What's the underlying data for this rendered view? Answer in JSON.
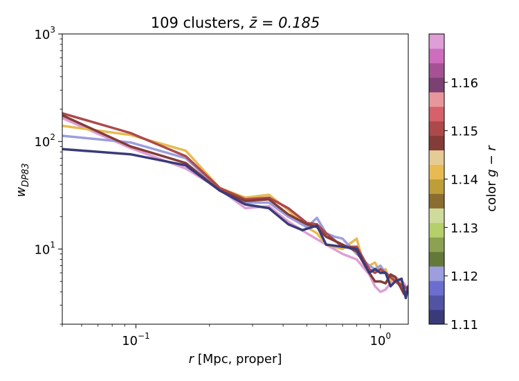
{
  "chart_data": {
    "type": "line",
    "title_main": "109 clusters, ",
    "title_math": "z̄ = 0.185",
    "xlabel_sym": "r",
    "xlabel_rest": " [Mpc, proper]",
    "ylabel_sym": "w",
    "ylabel_sub": "DP83",
    "x_scale": "log",
    "y_scale": "log",
    "xlim": [
      0.05,
      1.3
    ],
    "ylim": [
      2,
      1000
    ],
    "x_ticks": [
      {
        "value": 0.1,
        "label": "10",
        "exp": "−1"
      },
      {
        "value": 1,
        "label": "10",
        "exp": "0"
      }
    ],
    "y_ticks": [
      {
        "value": 10,
        "label": "10",
        "exp": "1"
      },
      {
        "value": 100,
        "label": "10",
        "exp": "2"
      },
      {
        "value": 1000,
        "label": "10",
        "exp": "3"
      }
    ],
    "colorbar": {
      "label_prefix": "color ",
      "label_math": "g − r",
      "range": [
        1.11,
        1.17
      ],
      "ticks": [
        {
          "value": 1.11,
          "label": "1.11"
        },
        {
          "value": 1.12,
          "label": "1.12"
        },
        {
          "value": 1.13,
          "label": "1.13"
        },
        {
          "value": 1.14,
          "label": "1.14"
        },
        {
          "value": 1.15,
          "label": "1.15"
        },
        {
          "value": 1.16,
          "label": "1.16"
        }
      ],
      "colors": [
        "#393b79",
        "#5254a3",
        "#6b6ecf",
        "#9c9ede",
        "#637939",
        "#8ca252",
        "#b5cf6b",
        "#cedb9c",
        "#8c6d31",
        "#bd9e39",
        "#e7ba52",
        "#e7cb94",
        "#843c39",
        "#ad494a",
        "#d6616b",
        "#e7969c",
        "#7b4173",
        "#a55194",
        "#ce6dbd",
        "#de9ed6"
      ]
    },
    "series": [
      {
        "color": "#de9ed6",
        "x": [
          0.05,
          0.095,
          0.16,
          0.22,
          0.28,
          0.35,
          0.42,
          0.5,
          0.6,
          0.7,
          0.8,
          0.9,
          0.95,
          1.0,
          1.05,
          1.15,
          1.25,
          1.3
        ],
        "y": [
          165,
          87,
          56,
          36,
          24,
          25,
          18,
          14,
          11,
          9,
          8,
          5.8,
          4.5,
          4.0,
          4.2,
          5.5,
          4.8,
          4.0
        ]
      },
      {
        "color": "#e7ba52",
        "x": [
          0.05,
          0.095,
          0.16,
          0.22,
          0.28,
          0.35,
          0.42,
          0.5,
          0.55,
          0.6,
          0.7,
          0.8,
          0.85,
          0.9,
          0.95,
          1.0,
          1.05,
          1.1,
          1.15,
          1.25,
          1.3
        ],
        "y": [
          140,
          115,
          82,
          37,
          30,
          32,
          23,
          16,
          14,
          11,
          10,
          12.5,
          7.5,
          7.0,
          7.5,
          6.0,
          6.5,
          5.0,
          5.5,
          4.2,
          4.0
        ]
      },
      {
        "color": "#9c9ede",
        "x": [
          0.05,
          0.095,
          0.16,
          0.22,
          0.28,
          0.35,
          0.42,
          0.5,
          0.55,
          0.6,
          0.65,
          0.7,
          0.8,
          0.9,
          0.95,
          1.0,
          1.05,
          1.1,
          1.15,
          1.25,
          1.3
        ],
        "y": [
          113,
          98,
          70,
          36,
          27,
          27,
          20,
          16,
          19.5,
          14,
          13,
          12.5,
          9,
          7,
          6.5,
          7.0,
          6.0,
          5.5,
          5.0,
          4.2,
          4.5
        ]
      },
      {
        "color": "#ad494a",
        "x": [
          0.05,
          0.095,
          0.16,
          0.22,
          0.28,
          0.35,
          0.42,
          0.5,
          0.55,
          0.6,
          0.7,
          0.8,
          0.9,
          0.95,
          1.0,
          1.05,
          1.1,
          1.15,
          1.25,
          1.3
        ],
        "y": [
          183,
          120,
          73,
          37,
          29,
          30,
          24,
          17.5,
          17,
          14,
          10.5,
          10.5,
          6.5,
          6.0,
          6.5,
          6.0,
          5.5,
          5.0,
          4.5,
          4.2
        ]
      },
      {
        "color": "#843c39",
        "x": [
          0.05,
          0.095,
          0.16,
          0.22,
          0.28,
          0.35,
          0.42,
          0.5,
          0.55,
          0.6,
          0.7,
          0.8,
          0.9,
          0.95,
          1.0,
          1.05,
          1.1,
          1.15,
          1.25,
          1.3
        ],
        "y": [
          175,
          90,
          63,
          35,
          28,
          29,
          21,
          17,
          16,
          13,
          11,
          9.5,
          6.0,
          5.0,
          5.0,
          4.8,
          5.8,
          5.5,
          3.8,
          4.2
        ]
      },
      {
        "color": "#393b79",
        "x": [
          0.05,
          0.095,
          0.16,
          0.22,
          0.28,
          0.35,
          0.42,
          0.48,
          0.55,
          0.6,
          0.7,
          0.8,
          0.9,
          0.95,
          1.0,
          1.05,
          1.1,
          1.15,
          1.22,
          1.27,
          1.3
        ],
        "y": [
          85,
          76,
          60,
          35,
          26,
          24,
          17,
          15,
          16.5,
          11,
          10.5,
          10,
          6.0,
          6.5,
          6.0,
          6.0,
          4.5,
          5.0,
          5.3,
          3.5,
          4.5
        ]
      }
    ]
  }
}
